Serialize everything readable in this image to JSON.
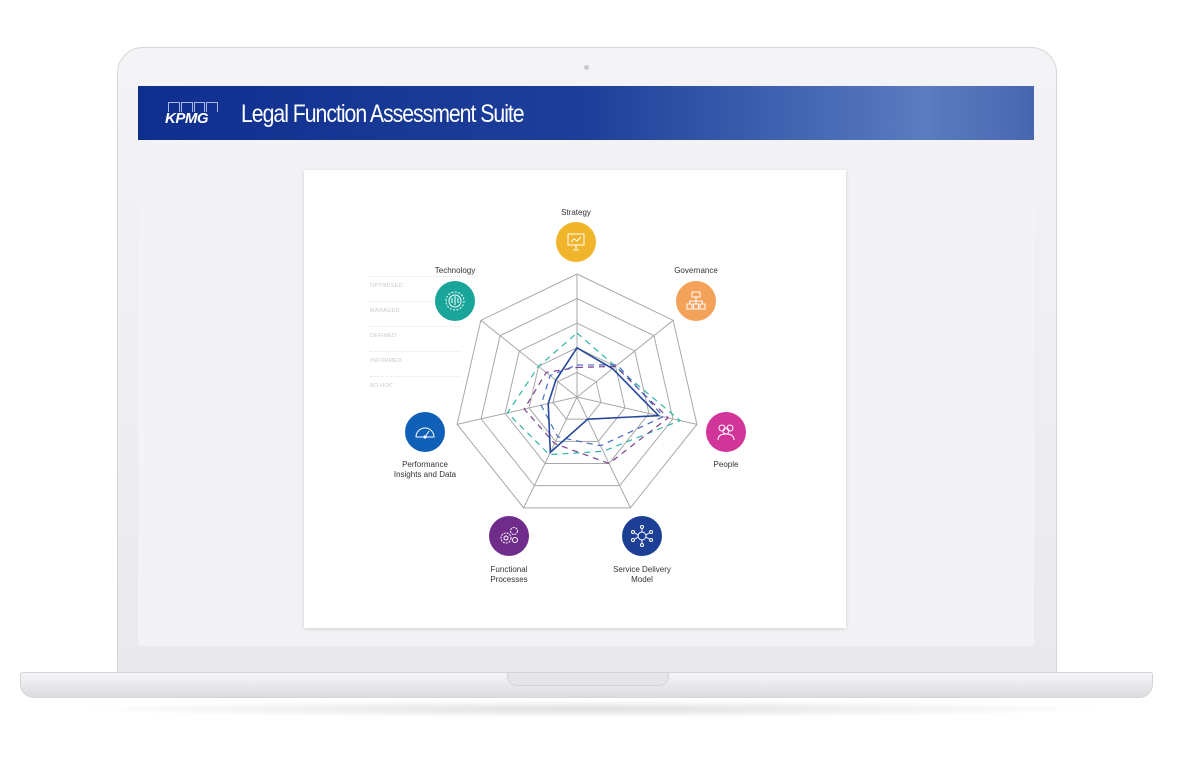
{
  "app": {
    "brand": "KPMG",
    "title": "Legal Function Assessment Suite"
  },
  "levels": [
    "OPTIMISED",
    "MANAGED",
    "DEFINED",
    "INFORMED",
    "AD HOC"
  ],
  "axes": [
    {
      "label": "Strategy",
      "icon": "presentation-board-icon",
      "color": "#f0b52a"
    },
    {
      "label": "Governance",
      "icon": "org-chart-icon",
      "color": "#f4a25a"
    },
    {
      "label": "People",
      "icon": "people-group-icon",
      "color": "#d2359a"
    },
    {
      "label": "Service Delivery Model",
      "icon": "network-person-icon",
      "color": "#1c3f95"
    },
    {
      "label": "Functional Processes",
      "icon": "gears-icon",
      "color": "#6f2c8b"
    },
    {
      "label": "Performance Insights and Data",
      "icon": "gauge-icon",
      "color": "#1060b8"
    },
    {
      "label": "Technology",
      "icon": "circuit-gear-icon",
      "color": "#1aa59b"
    }
  ],
  "chart_data": {
    "type": "radar",
    "categories": [
      "Strategy",
      "Governance",
      "People",
      "Service Delivery Model",
      "Functional Processes",
      "Performance Insights and Data",
      "Technology"
    ],
    "scale_labels": [
      "AD HOC",
      "INFORMED",
      "DEFINED",
      "MANAGED",
      "OPTIMISED"
    ],
    "rlim": [
      0,
      5
    ],
    "series": [
      {
        "values": [
          2.6,
          2.0,
          4.3,
          2.45,
          2.6,
          2.9,
          2.0
        ],
        "color": "#2fb3a6",
        "style": "dashed"
      },
      {
        "values": [
          1.2,
          2.0,
          3.8,
          3.0,
          2.1,
          2.2,
          1.6
        ],
        "color": "#7a3f8f",
        "style": "dashed"
      },
      {
        "values": [
          1.3,
          2.1,
          3.6,
          2.2,
          1.8,
          1.5,
          1.4
        ],
        "color": "#4a6cc0",
        "style": "dashed"
      },
      {
        "values": [
          2.0,
          1.85,
          3.4,
          1.0,
          2.5,
          1.2,
          1.1
        ],
        "color": "#26479a",
        "style": "solid"
      }
    ]
  }
}
